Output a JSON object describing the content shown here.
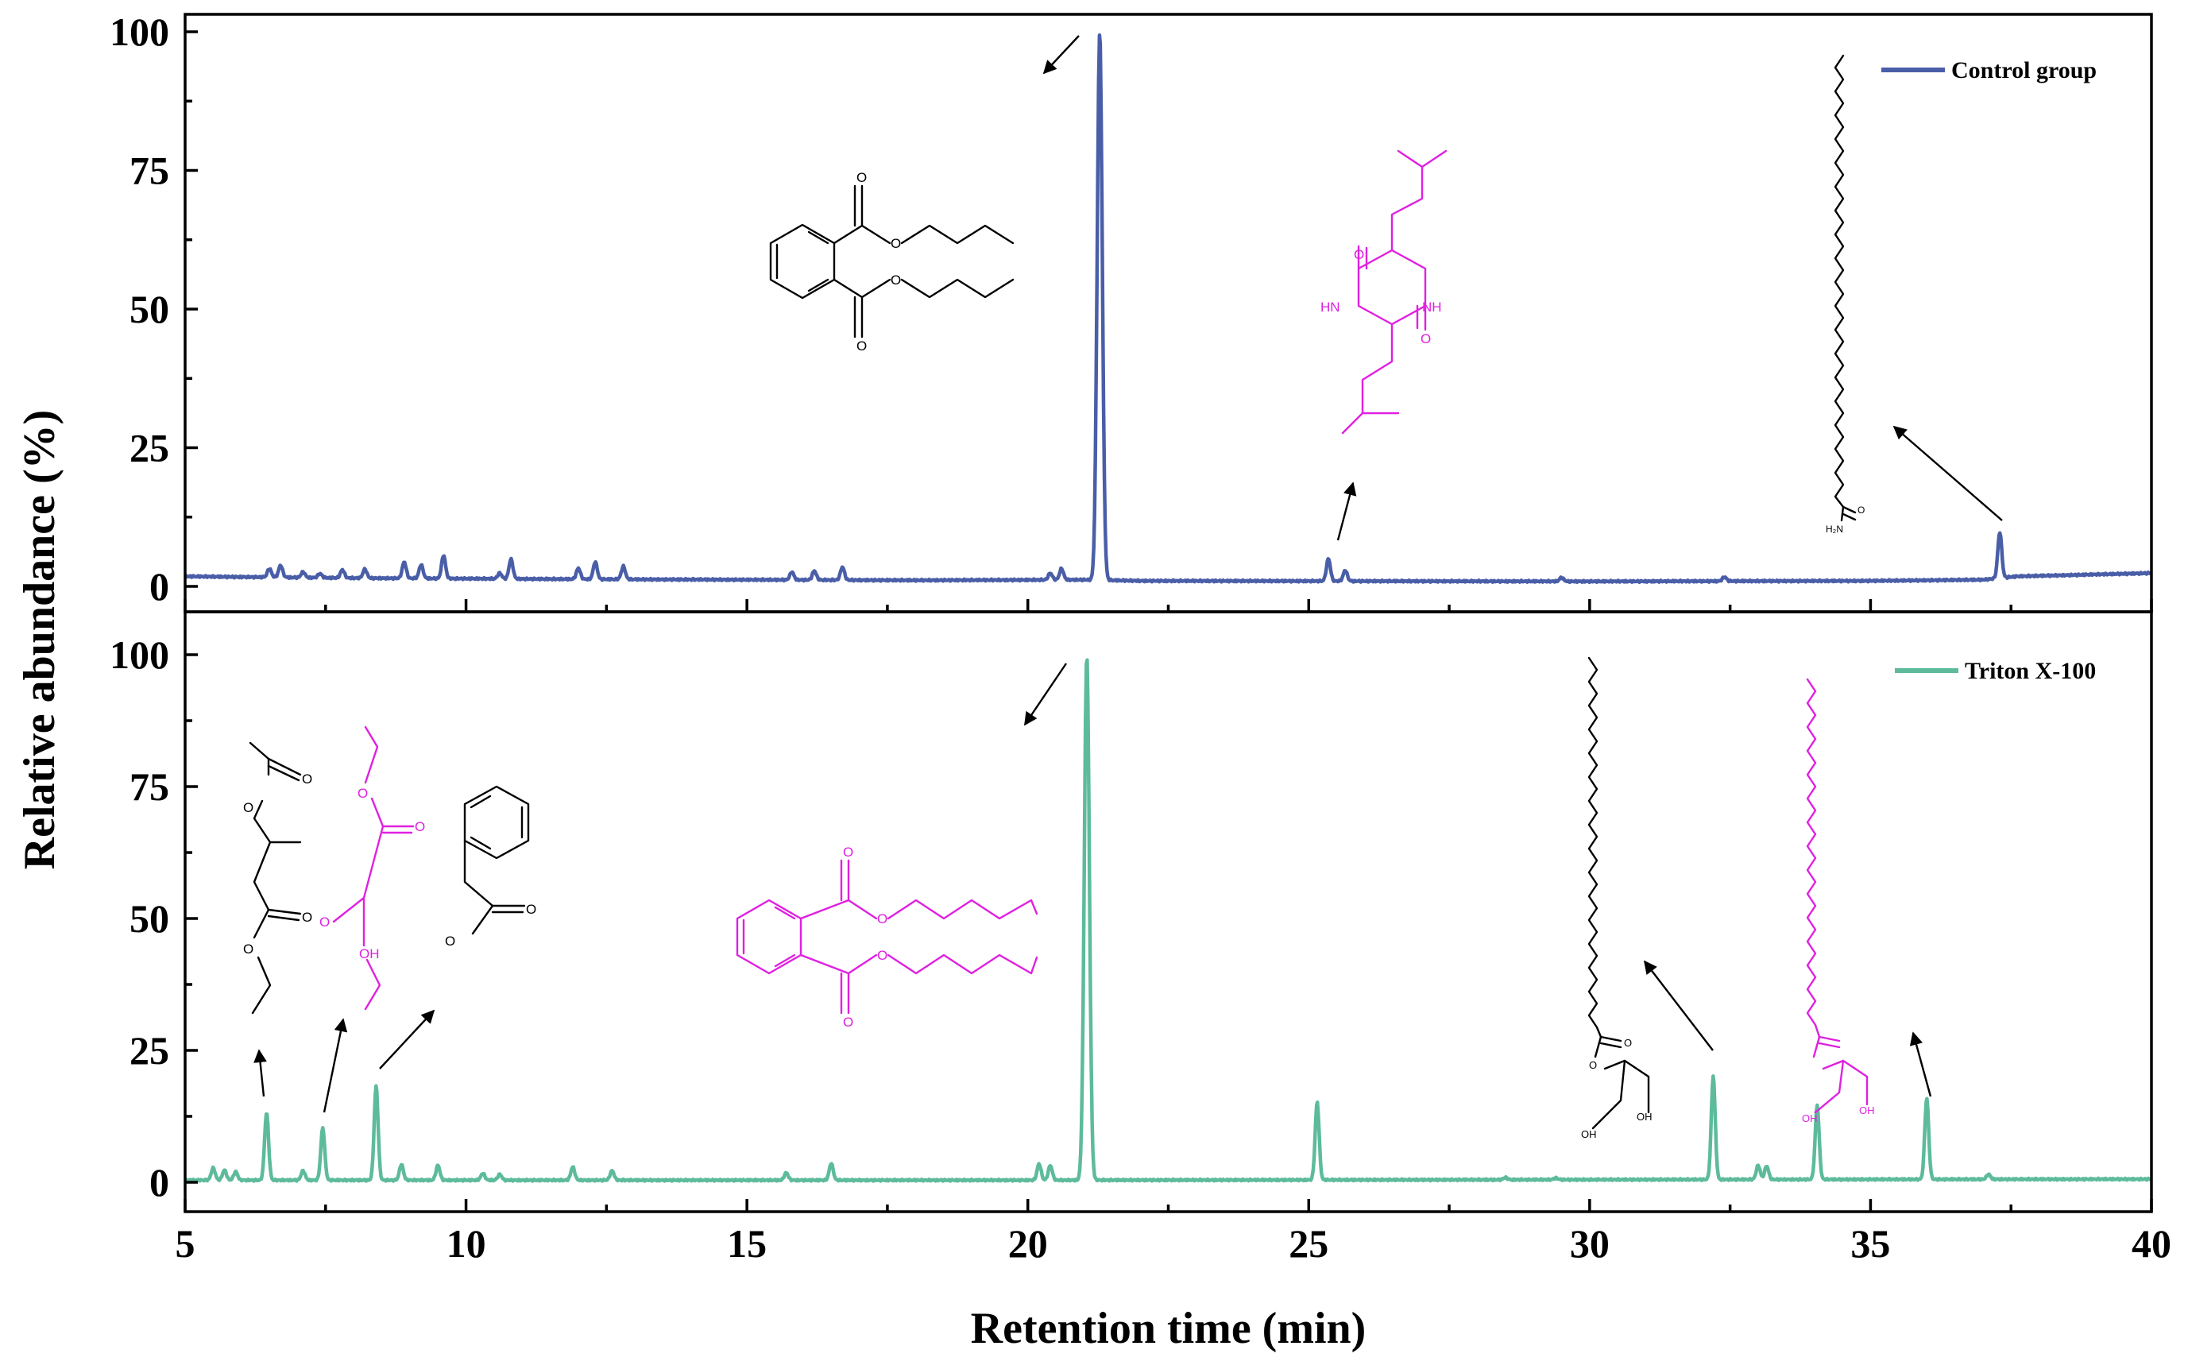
{
  "chart_data": {
    "type": "line",
    "xlabel": "Retention time (min)",
    "ylabel": "Relative abundance (%)",
    "xlim": [
      5,
      40
    ],
    "ylim": [
      0,
      100
    ],
    "x_ticks": [
      5,
      10,
      15,
      20,
      25,
      30,
      35,
      40
    ],
    "y_ticks": [
      0,
      25,
      50,
      75,
      100
    ],
    "legend_placement": "top-right",
    "panels": [
      {
        "position": "top",
        "series": [
          {
            "name": "Control group",
            "color": "#4a5ea8",
            "baseline": [
              [
                5.0,
                1.8
              ],
              [
                8.0,
                1.5
              ],
              [
                12.0,
                1.3
              ],
              [
                18.0,
                1.1
              ],
              [
                21.0,
                1.2
              ],
              [
                22.0,
                1.0
              ],
              [
                30.0,
                0.9
              ],
              [
                35.0,
                1.0
              ],
              [
                37.0,
                1.2
              ],
              [
                37.6,
                1.8
              ],
              [
                40.0,
                2.4
              ]
            ],
            "peaks": [
              [
                6.5,
                3.2
              ],
              [
                6.7,
                3.8
              ],
              [
                7.1,
                2.6
              ],
              [
                7.4,
                2.3
              ],
              [
                7.8,
                3.0
              ],
              [
                8.2,
                3.1
              ],
              [
                8.9,
                4.4
              ],
              [
                9.2,
                3.9
              ],
              [
                9.6,
                5.6
              ],
              [
                10.6,
                2.4
              ],
              [
                10.8,
                4.9
              ],
              [
                12.0,
                3.3
              ],
              [
                12.3,
                4.4
              ],
              [
                12.8,
                3.6
              ],
              [
                15.8,
                2.6
              ],
              [
                16.2,
                2.8
              ],
              [
                16.7,
                3.5
              ],
              [
                20.4,
                2.4
              ],
              [
                20.6,
                3.2
              ],
              [
                21.28,
                100.0
              ],
              [
                25.35,
                5.0
              ],
              [
                25.65,
                2.9
              ],
              [
                29.5,
                1.6
              ],
              [
                32.4,
                1.7
              ],
              [
                37.3,
                9.8
              ]
            ]
          }
        ]
      },
      {
        "position": "bottom",
        "series": [
          {
            "name": "Triton X-100",
            "color": "#5dbb9c",
            "baseline": [
              [
                5.0,
                0.4
              ],
              [
                10.0,
                0.4
              ],
              [
                20.0,
                0.4
              ],
              [
                30.0,
                0.5
              ],
              [
                40.0,
                0.6
              ]
            ],
            "peaks": [
              [
                5.5,
                2.7
              ],
              [
                5.7,
                2.3
              ],
              [
                5.9,
                2.0
              ],
              [
                6.45,
                13.2
              ],
              [
                7.1,
                2.2
              ],
              [
                7.45,
                10.3
              ],
              [
                8.4,
                18.3
              ],
              [
                8.85,
                3.4
              ],
              [
                9.5,
                3.2
              ],
              [
                10.3,
                1.7
              ],
              [
                10.6,
                1.5
              ],
              [
                11.9,
                2.9
              ],
              [
                12.6,
                2.2
              ],
              [
                15.7,
                1.8
              ],
              [
                16.5,
                3.6
              ],
              [
                20.2,
                3.5
              ],
              [
                20.4,
                3.2
              ],
              [
                21.05,
                100.0
              ],
              [
                25.15,
                15.2
              ],
              [
                28.5,
                0.9
              ],
              [
                29.4,
                0.8
              ],
              [
                32.2,
                20.2
              ],
              [
                33.0,
                3.2
              ],
              [
                33.15,
                3.1
              ],
              [
                34.05,
                14.6
              ],
              [
                36.0,
                15.9
              ],
              [
                37.1,
                1.5
              ]
            ]
          }
        ]
      }
    ],
    "annotations": {
      "atom_labels": [
        "O",
        "O",
        "O",
        "O",
        "HN",
        "NH",
        "O",
        "O",
        "H₂N",
        "O",
        "O",
        "O",
        "O",
        "O",
        "O",
        "O",
        "O",
        "OH",
        "O",
        "O",
        "O",
        "O",
        "O",
        "O",
        "OH",
        "OH",
        "O",
        "O",
        "OH",
        "OH"
      ]
    }
  }
}
